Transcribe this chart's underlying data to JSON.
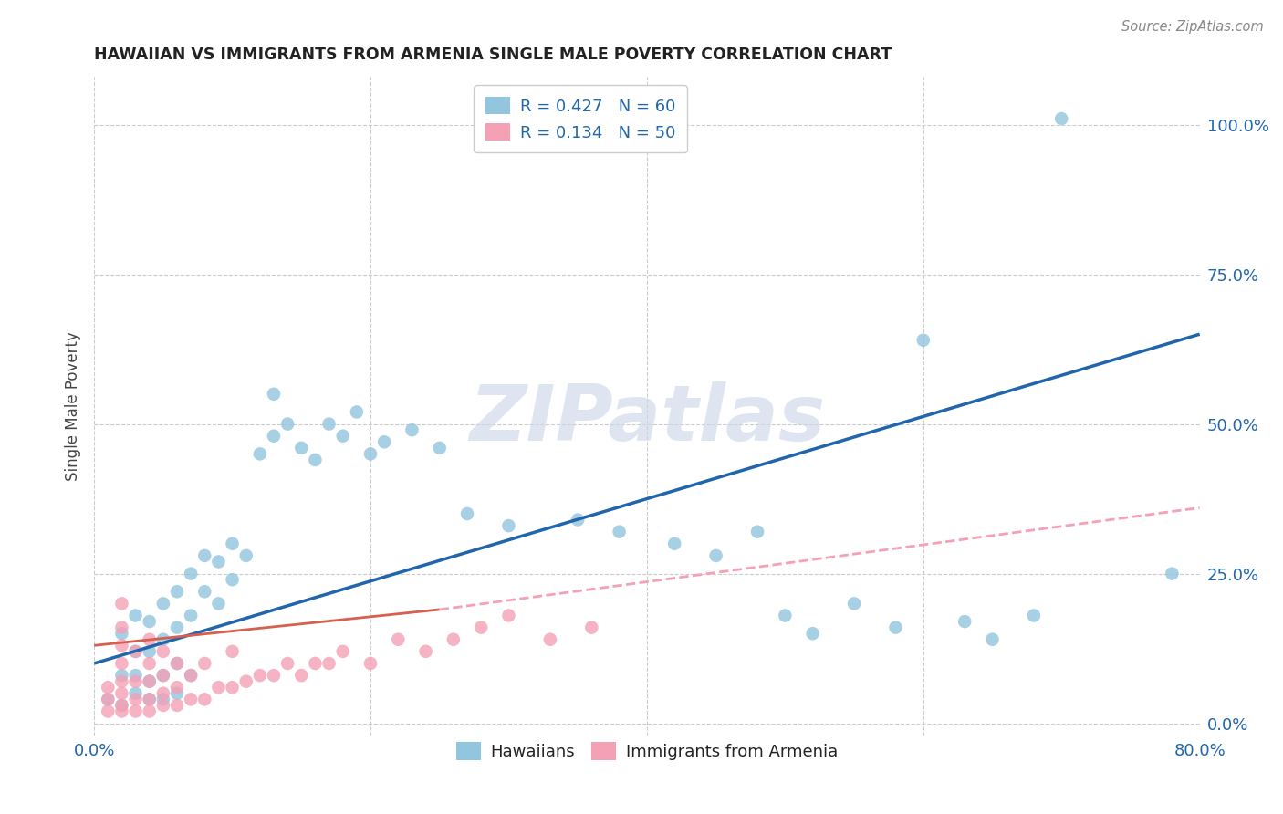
{
  "title": "HAWAIIAN VS IMMIGRANTS FROM ARMENIA SINGLE MALE POVERTY CORRELATION CHART",
  "source": "Source: ZipAtlas.com",
  "ylabel": "Single Male Poverty",
  "ytick_labels": [
    "0.0%",
    "25.0%",
    "50.0%",
    "75.0%",
    "100.0%"
  ],
  "ytick_values": [
    0.0,
    0.25,
    0.5,
    0.75,
    1.0
  ],
  "xlim": [
    0.0,
    0.8
  ],
  "ylim": [
    -0.02,
    1.08
  ],
  "legend_label_blue": "R = 0.427   N = 60",
  "legend_label_pink": "R = 0.134   N = 50",
  "legend_label_hawaiians": "Hawaiians",
  "legend_label_armenia": "Immigrants from Armenia",
  "blue_color": "#92c5de",
  "pink_color": "#f4a0b5",
  "blue_line_color": "#2166ac",
  "pink_line_color": "#d6604d",
  "pink_dash_color": "#f4a0b5",
  "watermark": "ZIPatlas",
  "blue_regression": [
    0.0,
    0.1,
    0.8,
    0.65
  ],
  "pink_regression_solid": [
    0.0,
    0.13,
    0.25,
    0.19
  ],
  "pink_regression_dash": [
    0.25,
    0.19,
    0.8,
    0.36
  ],
  "hawaiians_x": [
    0.01,
    0.02,
    0.02,
    0.02,
    0.03,
    0.03,
    0.03,
    0.03,
    0.04,
    0.04,
    0.04,
    0.04,
    0.05,
    0.05,
    0.05,
    0.05,
    0.06,
    0.06,
    0.06,
    0.06,
    0.07,
    0.07,
    0.07,
    0.08,
    0.08,
    0.09,
    0.09,
    0.1,
    0.1,
    0.11,
    0.12,
    0.13,
    0.13,
    0.14,
    0.15,
    0.16,
    0.17,
    0.18,
    0.19,
    0.2,
    0.21,
    0.23,
    0.25,
    0.27,
    0.3,
    0.35,
    0.38,
    0.42,
    0.45,
    0.48,
    0.5,
    0.52,
    0.55,
    0.58,
    0.6,
    0.63,
    0.65,
    0.68,
    0.7,
    0.78
  ],
  "hawaiians_y": [
    0.04,
    0.03,
    0.08,
    0.15,
    0.05,
    0.08,
    0.12,
    0.18,
    0.04,
    0.07,
    0.12,
    0.17,
    0.04,
    0.08,
    0.14,
    0.2,
    0.05,
    0.1,
    0.16,
    0.22,
    0.08,
    0.18,
    0.25,
    0.22,
    0.28,
    0.2,
    0.27,
    0.24,
    0.3,
    0.28,
    0.45,
    0.48,
    0.55,
    0.5,
    0.46,
    0.44,
    0.5,
    0.48,
    0.52,
    0.45,
    0.47,
    0.49,
    0.46,
    0.35,
    0.33,
    0.34,
    0.32,
    0.3,
    0.28,
    0.32,
    0.18,
    0.15,
    0.2,
    0.16,
    0.64,
    0.17,
    0.14,
    0.18,
    1.01,
    0.25
  ],
  "armenians_x": [
    0.01,
    0.01,
    0.01,
    0.02,
    0.02,
    0.02,
    0.02,
    0.02,
    0.02,
    0.02,
    0.02,
    0.03,
    0.03,
    0.03,
    0.03,
    0.04,
    0.04,
    0.04,
    0.04,
    0.04,
    0.05,
    0.05,
    0.05,
    0.05,
    0.06,
    0.06,
    0.06,
    0.07,
    0.07,
    0.08,
    0.08,
    0.09,
    0.1,
    0.1,
    0.11,
    0.12,
    0.13,
    0.14,
    0.15,
    0.16,
    0.17,
    0.18,
    0.2,
    0.22,
    0.24,
    0.26,
    0.28,
    0.3,
    0.33,
    0.36
  ],
  "armenians_y": [
    0.02,
    0.04,
    0.06,
    0.02,
    0.03,
    0.05,
    0.07,
    0.1,
    0.13,
    0.16,
    0.2,
    0.02,
    0.04,
    0.07,
    0.12,
    0.02,
    0.04,
    0.07,
    0.1,
    0.14,
    0.03,
    0.05,
    0.08,
    0.12,
    0.03,
    0.06,
    0.1,
    0.04,
    0.08,
    0.04,
    0.1,
    0.06,
    0.06,
    0.12,
    0.07,
    0.08,
    0.08,
    0.1,
    0.08,
    0.1,
    0.1,
    0.12,
    0.1,
    0.14,
    0.12,
    0.14,
    0.16,
    0.18,
    0.14,
    0.16
  ]
}
